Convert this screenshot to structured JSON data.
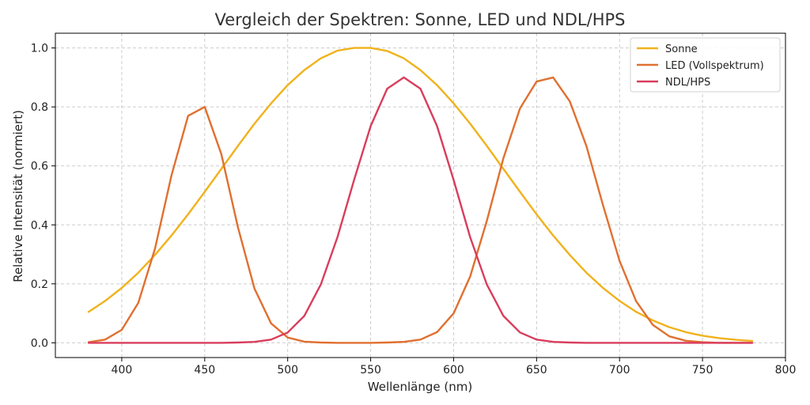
{
  "chart_data": {
    "type": "line",
    "title": "Vergleich der Spektren: Sonne, LED und NDL/HPS",
    "xlabel": "Wellenlänge (nm)",
    "ylabel": "Relative Intensität (normiert)",
    "xlim": [
      360,
      800
    ],
    "ylim": [
      -0.05,
      1.05
    ],
    "xticks": [
      400,
      450,
      500,
      550,
      600,
      650,
      700,
      750,
      800
    ],
    "yticks": [
      0.0,
      0.2,
      0.4,
      0.6,
      0.8,
      1.0
    ],
    "xtick_labels": [
      "400",
      "450",
      "500",
      "550",
      "600",
      "650",
      "700",
      "750",
      "800"
    ],
    "ytick_labels": [
      "0.0",
      "0.2",
      "0.4",
      "0.6",
      "0.8",
      "1.0"
    ],
    "grid": true,
    "legend_position": "top-right",
    "x": [
      380,
      390,
      400,
      410,
      420,
      430,
      440,
      450,
      460,
      470,
      480,
      490,
      500,
      510,
      520,
      530,
      540,
      550,
      560,
      570,
      580,
      590,
      600,
      610,
      620,
      630,
      640,
      650,
      660,
      670,
      680,
      690,
      700,
      710,
      720,
      730,
      740,
      750,
      760,
      770,
      780
    ],
    "series": [
      {
        "name": "Sonne",
        "color": "#f0b21c",
        "values": [
          0.105,
          0.142,
          0.186,
          0.238,
          0.298,
          0.364,
          0.436,
          0.512,
          0.59,
          0.668,
          0.743,
          0.812,
          0.874,
          0.925,
          0.965,
          0.991,
          1.0,
          1.0,
          0.99,
          0.965,
          0.925,
          0.874,
          0.812,
          0.743,
          0.668,
          0.59,
          0.512,
          0.436,
          0.364,
          0.298,
          0.238,
          0.186,
          0.142,
          0.105,
          0.076,
          0.053,
          0.036,
          0.024,
          0.016,
          0.01,
          0.006
        ]
      },
      {
        "name": "LED (Vollspektrum)",
        "color": "#e07030",
        "values": [
          0.002,
          0.011,
          0.044,
          0.136,
          0.319,
          0.568,
          0.77,
          0.8,
          0.64,
          0.392,
          0.184,
          0.066,
          0.018,
          0.004,
          0.001,
          0.0,
          0.0,
          0.0,
          0.001,
          0.003,
          0.011,
          0.036,
          0.1,
          0.225,
          0.413,
          0.626,
          0.795,
          0.886,
          0.9,
          0.819,
          0.668,
          0.467,
          0.278,
          0.141,
          0.061,
          0.022,
          0.007,
          0.002,
          0.0,
          0.0,
          0.0
        ]
      },
      {
        "name": "NDL/HPS",
        "color": "#d93d5c",
        "values": [
          0.0,
          0.0,
          0.0,
          0.0,
          0.0,
          0.0,
          0.0,
          0.0,
          0.0,
          0.001,
          0.003,
          0.011,
          0.035,
          0.091,
          0.198,
          0.358,
          0.552,
          0.735,
          0.862,
          0.9,
          0.862,
          0.735,
          0.552,
          0.358,
          0.198,
          0.091,
          0.035,
          0.011,
          0.003,
          0.001,
          0.0,
          0.0,
          0.0,
          0.0,
          0.0,
          0.0,
          0.0,
          0.0,
          0.0,
          0.0,
          0.0
        ]
      }
    ]
  }
}
